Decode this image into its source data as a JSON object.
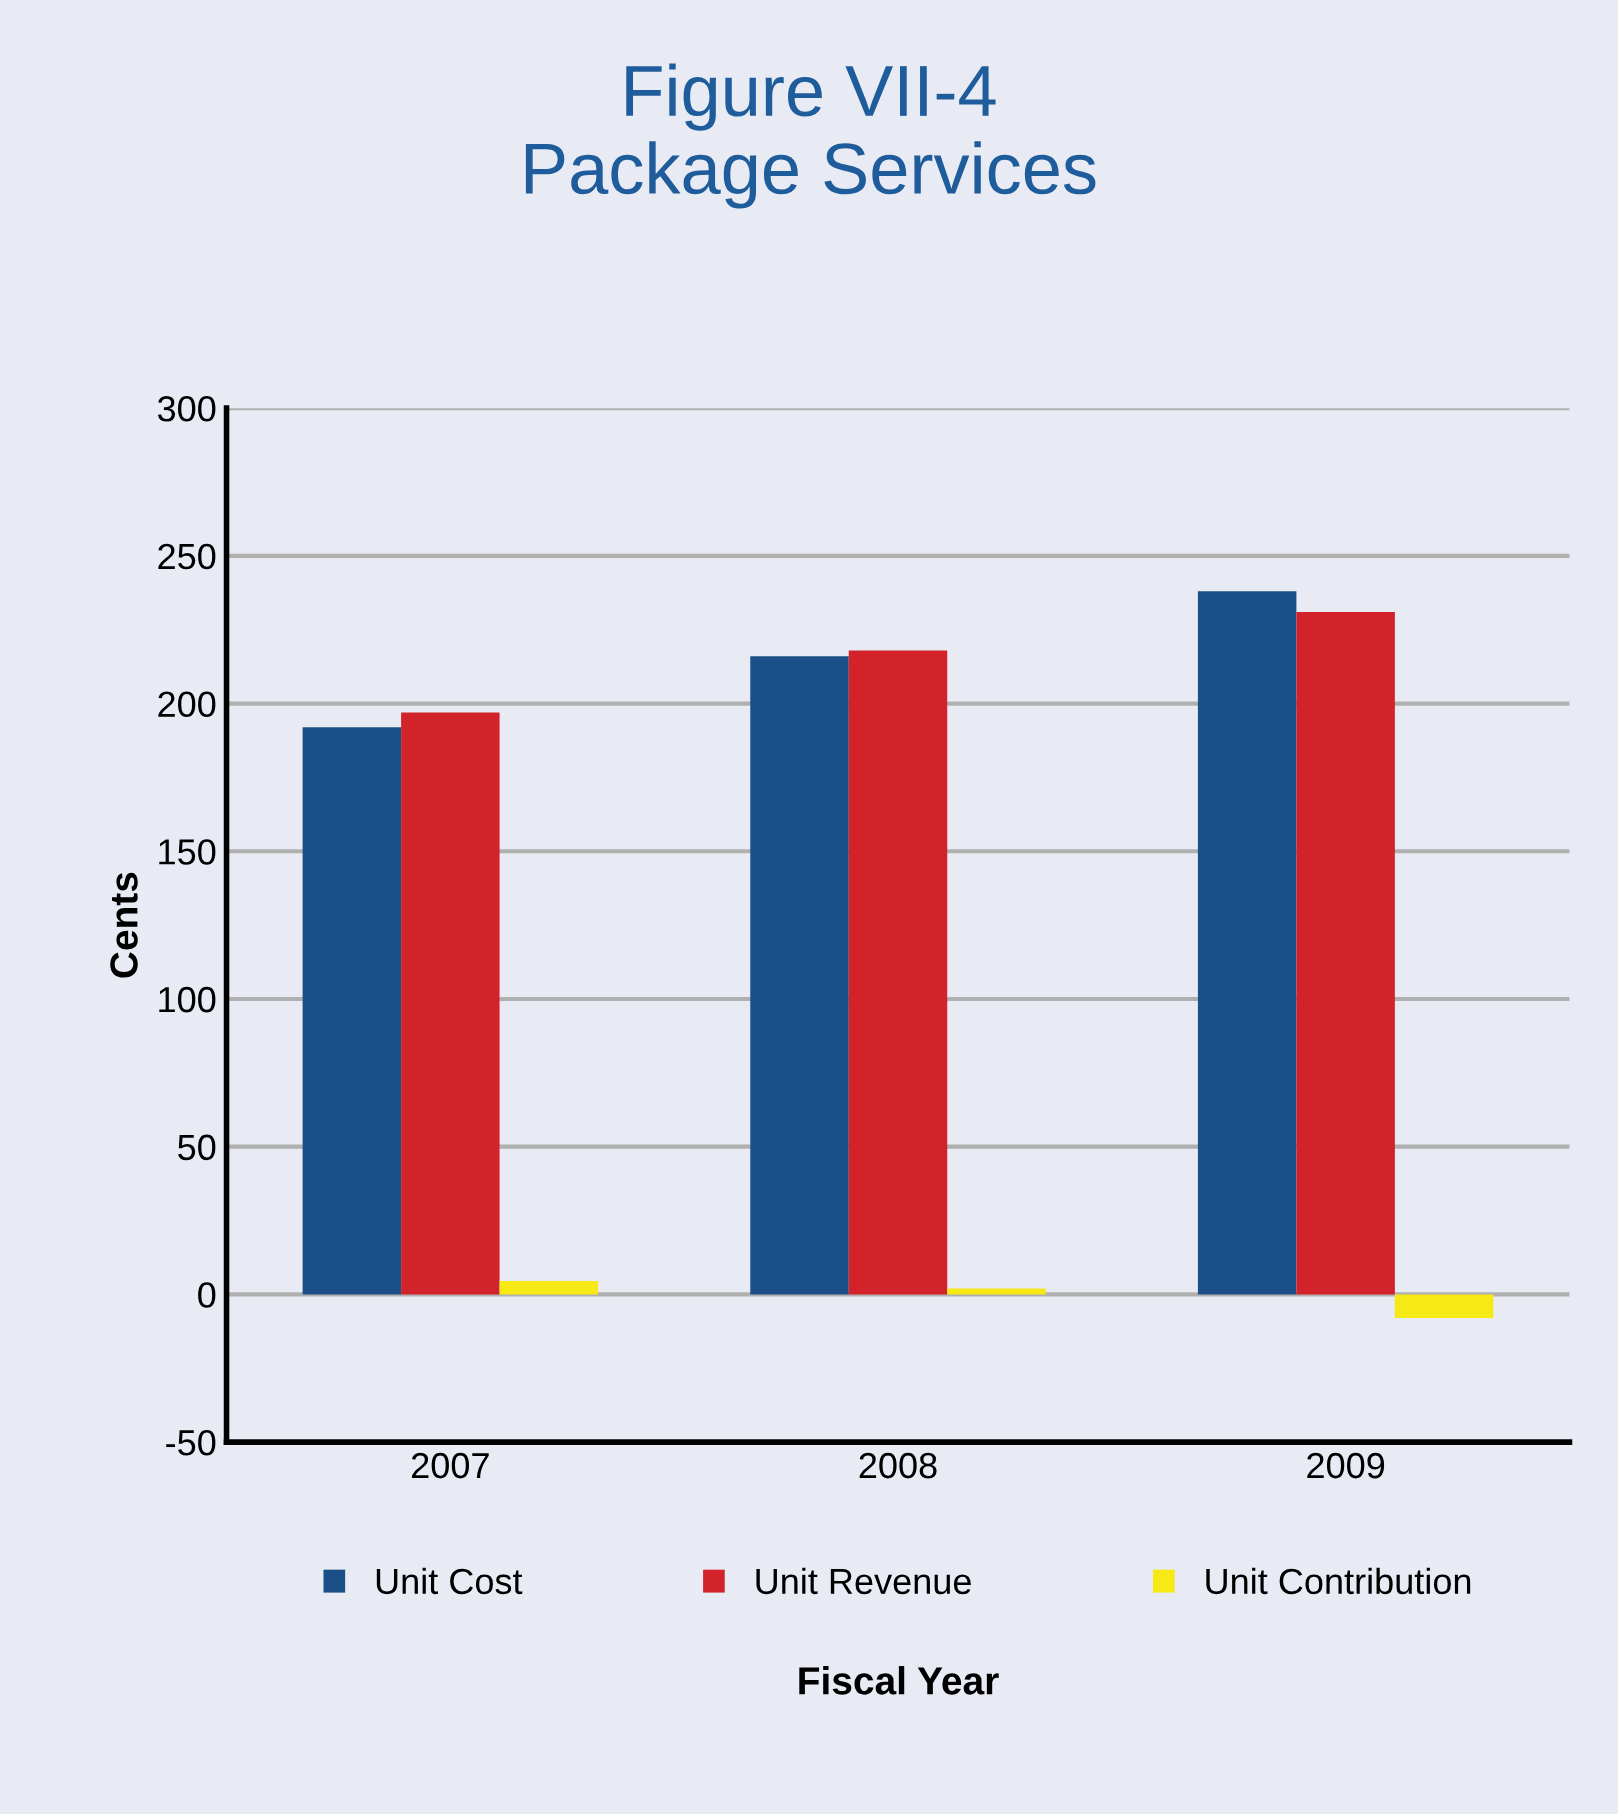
{
  "chart_data": {
    "type": "bar",
    "title": "Figure VII-4\nPackage Services",
    "xlabel": "Fiscal Year",
    "ylabel": "Cents",
    "categories": [
      "2007",
      "2008",
      "2009"
    ],
    "series": [
      {
        "name": "Unit Cost",
        "color": "#1b4f88",
        "values": [
          192,
          216,
          238
        ]
      },
      {
        "name": "Unit Revenue",
        "color": "#d2232a",
        "values": [
          197,
          218,
          231
        ]
      },
      {
        "name": "Unit Contribution",
        "color": "#f7e916",
        "values": [
          4.5,
          2,
          -8
        ]
      }
    ],
    "ylim": [
      -50,
      300
    ],
    "yticks": [
      -50,
      0,
      50,
      100,
      150,
      200,
      250,
      300
    ],
    "grid": "y",
    "legend": "bottom"
  }
}
